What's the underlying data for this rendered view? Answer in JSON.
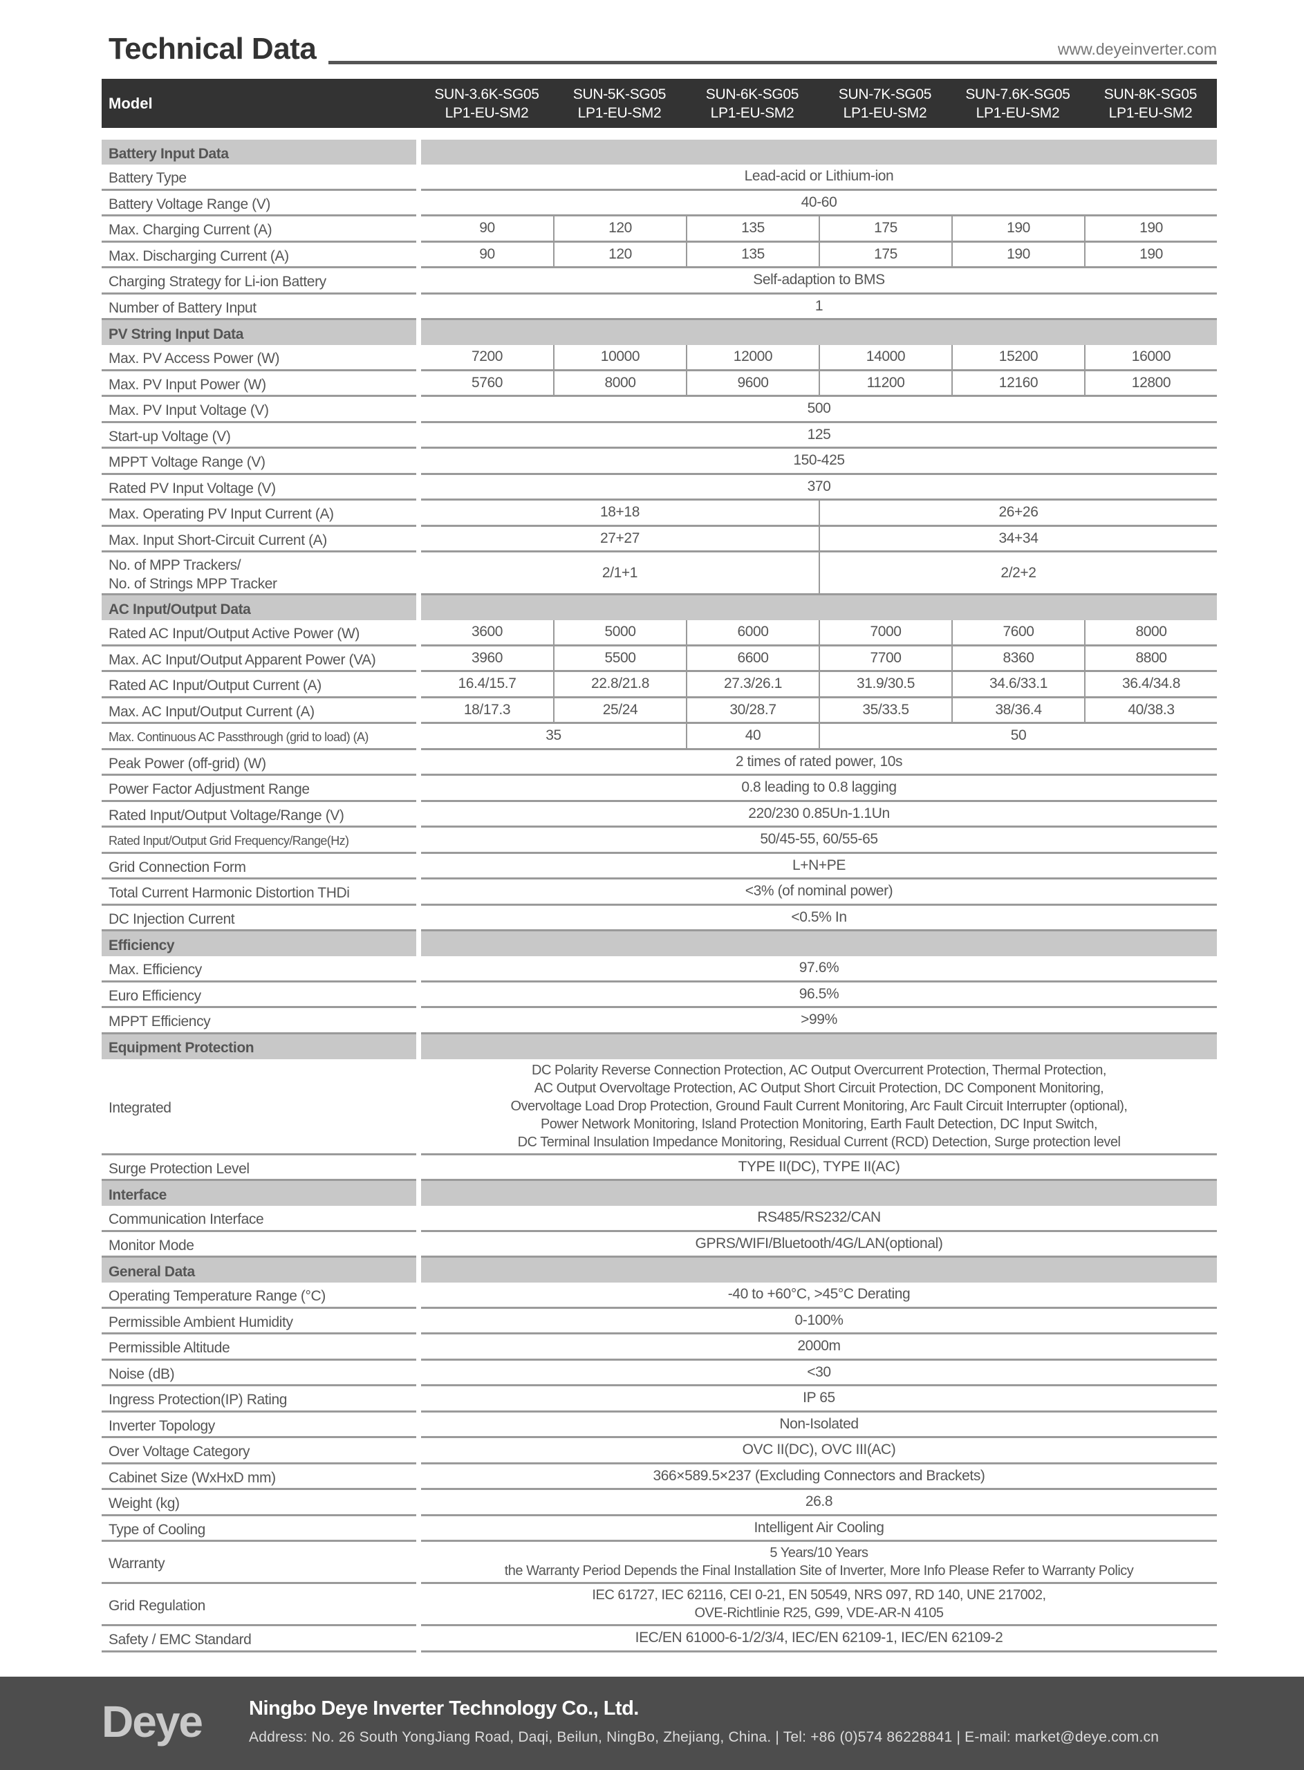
{
  "header": {
    "title": "Technical Data",
    "website": "www.deyeinverter.com"
  },
  "model_label": "Model",
  "models": [
    "SUN-3.6K-SG05\nLP1-EU-SM2",
    "SUN-5K-SG05\nLP1-EU-SM2",
    "SUN-6K-SG05\nLP1-EU-SM2",
    "SUN-7K-SG05\nLP1-EU-SM2",
    "SUN-7.6K-SG05\nLP1-EU-SM2",
    "SUN-8K-SG05\nLP1-EU-SM2"
  ],
  "rows": [
    {
      "section": "Battery Input Data"
    },
    {
      "label": "Battery Type",
      "cells": [
        {
          "v": "Lead-acid or Lithium-ion",
          "span": 6
        }
      ]
    },
    {
      "label": "Battery Voltage Range (V)",
      "cells": [
        {
          "v": "40-60",
          "span": 6
        }
      ]
    },
    {
      "label": "Max. Charging Current (A)",
      "cells": [
        {
          "v": "90"
        },
        {
          "v": "120"
        },
        {
          "v": "135"
        },
        {
          "v": "175"
        },
        {
          "v": "190"
        },
        {
          "v": "190"
        }
      ]
    },
    {
      "label": "Max. Discharging Current (A)",
      "cells": [
        {
          "v": "90"
        },
        {
          "v": "120"
        },
        {
          "v": "135"
        },
        {
          "v": "175"
        },
        {
          "v": "190"
        },
        {
          "v": "190"
        }
      ]
    },
    {
      "label": "Charging Strategy for Li-ion Battery",
      "cells": [
        {
          "v": "Self-adaption to BMS",
          "span": 6
        }
      ]
    },
    {
      "label": "Number of Battery Input",
      "cells": [
        {
          "v": "1",
          "span": 6
        }
      ]
    },
    {
      "section": "PV String Input Data"
    },
    {
      "label": "Max. PV Access Power (W)",
      "cells": [
        {
          "v": "7200"
        },
        {
          "v": "10000"
        },
        {
          "v": "12000"
        },
        {
          "v": "14000"
        },
        {
          "v": "15200"
        },
        {
          "v": "16000"
        }
      ]
    },
    {
      "label": "Max. PV Input Power (W)",
      "cells": [
        {
          "v": "5760"
        },
        {
          "v": "8000"
        },
        {
          "v": "9600"
        },
        {
          "v": "11200"
        },
        {
          "v": "12160"
        },
        {
          "v": "12800"
        }
      ]
    },
    {
      "label": "Max. PV Input Voltage (V)",
      "cells": [
        {
          "v": "500",
          "span": 6
        }
      ]
    },
    {
      "label": "Start-up Voltage (V)",
      "cells": [
        {
          "v": "125",
          "span": 6
        }
      ]
    },
    {
      "label": "MPPT  Voltage Range (V)",
      "cells": [
        {
          "v": "150-425",
          "span": 6
        }
      ]
    },
    {
      "label": "Rated PV Input Voltage (V)",
      "cells": [
        {
          "v": "370",
          "span": 6
        }
      ]
    },
    {
      "label": "Max. Operating PV Input Current (A)",
      "cells": [
        {
          "v": "18+18",
          "span": 3
        },
        {
          "v": "26+26",
          "span": 3
        }
      ]
    },
    {
      "label": "Max. Input Short-Circuit Current (A)",
      "cells": [
        {
          "v": "27+27",
          "span": 3
        },
        {
          "v": "34+34",
          "span": 3
        }
      ]
    },
    {
      "label": "No. of MPP Trackers/\nNo. of Strings MPP Tracker",
      "cells": [
        {
          "v": "2/1+1",
          "span": 3
        },
        {
          "v": "2/2+2",
          "span": 3
        }
      ]
    },
    {
      "section": "AC Input/Output Data"
    },
    {
      "label": "Rated AC Input/Output Active Power (W)",
      "cells": [
        {
          "v": "3600"
        },
        {
          "v": "5000"
        },
        {
          "v": "6000"
        },
        {
          "v": "7000"
        },
        {
          "v": "7600"
        },
        {
          "v": "8000"
        }
      ]
    },
    {
      "label": "Max. AC Input/Output Apparent Power (VA)",
      "cells": [
        {
          "v": "3960"
        },
        {
          "v": "5500"
        },
        {
          "v": "6600"
        },
        {
          "v": "7700"
        },
        {
          "v": "8360"
        },
        {
          "v": "8800"
        }
      ]
    },
    {
      "label": "Rated AC Input/Output Current (A)",
      "cells": [
        {
          "v": "16.4/15.7"
        },
        {
          "v": "22.8/21.8"
        },
        {
          "v": "27.3/26.1"
        },
        {
          "v": "31.9/30.5"
        },
        {
          "v": "34.6/33.1"
        },
        {
          "v": "36.4/34.8"
        }
      ]
    },
    {
      "label": "Max. AC Input/Output Current (A)",
      "cells": [
        {
          "v": "18/17.3"
        },
        {
          "v": "25/24"
        },
        {
          "v": "30/28.7"
        },
        {
          "v": "35/33.5"
        },
        {
          "v": "38/36.4"
        },
        {
          "v": "40/38.3"
        }
      ]
    },
    {
      "label": "Max. Continuous AC Passthrough (grid to load) (A)",
      "small": true,
      "cells": [
        {
          "v": "35",
          "span": 2
        },
        {
          "v": "40"
        },
        {
          "v": "50",
          "span": 3
        }
      ]
    },
    {
      "label": "Peak Power (off-grid) (W)",
      "cells": [
        {
          "v": "2 times of rated power, 10s",
          "span": 6
        }
      ]
    },
    {
      "label": "Power Factor Adjustment Range",
      "cells": [
        {
          "v": "0.8 leading to 0.8 lagging",
          "span": 6
        }
      ]
    },
    {
      "label": "Rated Input/Output Voltage/Range (V)",
      "cells": [
        {
          "v": "220/230   0.85Un-1.1Un",
          "span": 6
        }
      ]
    },
    {
      "label": "Rated Input/Output Grid Frequency/Range(Hz)",
      "small": true,
      "cells": [
        {
          "v": "50/45-55, 60/55-65",
          "span": 6
        }
      ]
    },
    {
      "label": "Grid Connection Form",
      "cells": [
        {
          "v": "L+N+PE",
          "span": 6
        }
      ]
    },
    {
      "label": "Total Current Harmonic Distortion THDi",
      "cells": [
        {
          "v": "<3% (of nominal power)",
          "span": 6
        }
      ]
    },
    {
      "label": "DC Injection Current",
      "cells": [
        {
          "v": "<0.5% In",
          "span": 6
        }
      ]
    },
    {
      "section": "Efficiency"
    },
    {
      "label": "Max. Efficiency",
      "cells": [
        {
          "v": "97.6%",
          "span": 6
        }
      ]
    },
    {
      "label": "Euro Efficiency",
      "cells": [
        {
          "v": "96.5%",
          "span": 6
        }
      ]
    },
    {
      "label": "MPPT Efficiency",
      "cells": [
        {
          "v": ">99%",
          "span": 6
        }
      ]
    },
    {
      "section": "Equipment Protection"
    },
    {
      "label": "Integrated",
      "tiny": true,
      "cells": [
        {
          "v": "DC Polarity Reverse Connection Protection, AC Output Overcurrent Protection, Thermal Protection,\nAC Output Overvoltage Protection, AC Output Short Circuit Protection, DC Component Monitoring,\nOvervoltage Load Drop Protection, Ground Fault Current Monitoring, Arc Fault Circuit Interrupter (optional),\nPower Network Monitoring, Island Protection Monitoring, Earth Fault Detection, DC Input Switch,\nDC Terminal Insulation Impedance Monitoring, Residual Current (RCD) Detection, Surge protection level",
          "span": 6
        }
      ]
    },
    {
      "label": "Surge Protection Level",
      "cells": [
        {
          "v": "TYPE II(DC), TYPE II(AC)",
          "span": 6
        }
      ]
    },
    {
      "section": "Interface"
    },
    {
      "label": "Communication Interface",
      "cells": [
        {
          "v": "RS485/RS232/CAN",
          "span": 6
        }
      ]
    },
    {
      "label": "Monitor Mode",
      "cells": [
        {
          "v": "GPRS/WIFI/Bluetooth/4G/LAN(optional)",
          "span": 6
        }
      ]
    },
    {
      "section": "General Data"
    },
    {
      "label": "Operating Temperature Range (°C)",
      "cells": [
        {
          "v": "-40 to +60°C, >45°C Derating",
          "span": 6
        }
      ]
    },
    {
      "label": "Permissible Ambient Humidity",
      "cells": [
        {
          "v": "0-100%",
          "span": 6
        }
      ]
    },
    {
      "label": "Permissible Altitude",
      "cells": [
        {
          "v": "2000m",
          "span": 6
        }
      ]
    },
    {
      "label": "Noise (dB)",
      "cells": [
        {
          "v": "<30",
          "span": 6
        }
      ]
    },
    {
      "label": "Ingress Protection(IP) Rating",
      "cells": [
        {
          "v": "IP 65",
          "span": 6
        }
      ]
    },
    {
      "label": "Inverter Topology",
      "cells": [
        {
          "v": "Non-Isolated",
          "span": 6
        }
      ]
    },
    {
      "label": "Over Voltage Category",
      "cells": [
        {
          "v": "OVC II(DC), OVC III(AC)",
          "span": 6
        }
      ]
    },
    {
      "label": "Cabinet Size (WxHxD mm)",
      "cells": [
        {
          "v": "366×589.5×237 (Excluding Connectors and Brackets)",
          "span": 6
        }
      ]
    },
    {
      "label": "Weight (kg)",
      "cells": [
        {
          "v": "26.8",
          "span": 6
        }
      ]
    },
    {
      "label": "Type of Cooling",
      "cells": [
        {
          "v": "Intelligent Air Cooling",
          "span": 6
        }
      ]
    },
    {
      "label": "Warranty",
      "tiny": true,
      "cells": [
        {
          "v": "5 Years/10 Years\nthe Warranty Period Depends the Final Installation Site of Inverter, More Info Please Refer to Warranty Policy",
          "span": 6
        }
      ]
    },
    {
      "label": "Grid Regulation",
      "tiny": true,
      "cells": [
        {
          "v": "IEC 61727, IEC 62116, CEI 0-21, EN 50549, NRS 097, RD 140, UNE 217002,\nOVE-Richtlinie R25, G99, VDE-AR-N 4105",
          "span": 6
        }
      ]
    },
    {
      "label": "Safety / EMC Standard",
      "cells": [
        {
          "v": "IEC/EN 61000-6-1/2/3/4, IEC/EN 62109-1, IEC/EN 62109-2",
          "span": 6
        }
      ]
    }
  ],
  "footer": {
    "logo": "Deye",
    "company": "Ningbo Deye Inverter Technology Co., Ltd.",
    "address": "Address: No. 26 South YongJiang Road, Daqi, Beilun, NingBo, Zhejiang, China.  |  Tel: +86 (0)574 86228841  |  E-mail: market@deye.com.cn"
  }
}
